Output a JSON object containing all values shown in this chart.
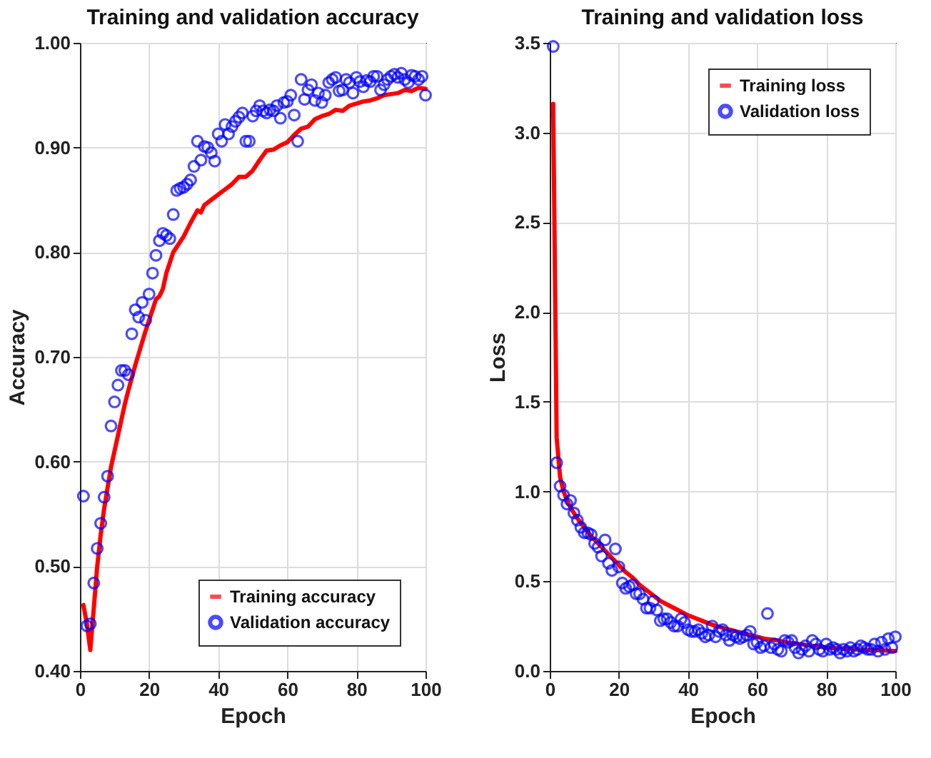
{
  "chart_data": [
    {
      "type": "line",
      "title": "Training and validation accuracy",
      "xlabel": "Epoch",
      "ylabel": "Accuracy",
      "xlim": [
        0,
        100
      ],
      "xticks": [
        0,
        20,
        40,
        60,
        80,
        100
      ],
      "ylim": [
        0.4,
        1
      ],
      "yticks": [
        {
          "value": 0.4,
          "label": "0.40"
        },
        {
          "value": 0.5,
          "label": "0.50"
        },
        {
          "value": 0.6,
          "label": "0.60"
        },
        {
          "value": 0.7,
          "label": "0.70"
        },
        {
          "value": 0.8,
          "label": "0.80"
        },
        {
          "value": 0.9,
          "label": "0.90"
        },
        {
          "value": 1,
          "label": "1.00"
        }
      ],
      "grid": true,
      "legend": "bottom right",
      "series": [
        {
          "name": "Training accuracy",
          "color": "#ff0000",
          "line_style": "solid",
          "x": [
            1,
            2,
            3,
            4,
            5,
            6,
            7,
            8,
            9,
            10,
            11,
            12,
            13,
            14,
            15,
            16,
            17,
            18,
            19,
            20,
            21,
            22,
            23,
            24,
            25,
            26,
            27,
            28,
            30,
            32,
            34,
            35,
            36,
            38,
            40,
            42,
            44,
            46,
            48,
            50,
            52,
            54,
            56,
            58,
            60,
            62,
            64,
            66,
            68,
            70,
            72,
            74,
            76,
            78,
            80,
            82,
            84,
            86,
            88,
            90,
            92,
            94,
            96,
            98,
            100
          ],
          "values": [
            0.463,
            0.445,
            0.42,
            0.46,
            0.5,
            0.53,
            0.555,
            0.575,
            0.595,
            0.61,
            0.625,
            0.64,
            0.655,
            0.668,
            0.68,
            0.692,
            0.703,
            0.714,
            0.725,
            0.735,
            0.745,
            0.755,
            0.758,
            0.765,
            0.78,
            0.79,
            0.8,
            0.805,
            0.815,
            0.828,
            0.84,
            0.838,
            0.845,
            0.85,
            0.855,
            0.86,
            0.865,
            0.872,
            0.872,
            0.878,
            0.888,
            0.897,
            0.898,
            0.902,
            0.905,
            0.912,
            0.918,
            0.92,
            0.927,
            0.93,
            0.932,
            0.936,
            0.935,
            0.94,
            0.942,
            0.944,
            0.945,
            0.947,
            0.95,
            0.951,
            0.952,
            0.955,
            0.954,
            0.957,
            0.956
          ]
        },
        {
          "name": "Validation accuracy",
          "type": "scatter",
          "color": "#0000ff",
          "marker": "circle",
          "x": [
            1,
            2,
            3,
            4,
            5,
            6,
            7,
            8,
            9,
            10,
            11,
            12,
            13,
            14,
            15,
            16,
            17,
            18,
            19,
            20,
            21,
            22,
            23,
            24,
            25,
            26,
            27,
            28,
            29,
            30,
            31,
            32,
            33,
            34,
            35,
            36,
            37,
            38,
            39,
            40,
            41,
            42,
            43,
            44,
            45,
            46,
            47,
            48,
            49,
            50,
            51,
            52,
            53,
            54,
            55,
            56,
            57,
            58,
            59,
            60,
            61,
            62,
            63,
            64,
            65,
            66,
            67,
            68,
            69,
            70,
            71,
            72,
            73,
            74,
            75,
            76,
            77,
            78,
            79,
            80,
            81,
            82,
            83,
            84,
            85,
            86,
            87,
            88,
            89,
            90,
            91,
            92,
            93,
            94,
            95,
            96,
            97,
            98,
            99,
            100
          ],
          "values": [
            0.567,
            0.443,
            0.445,
            0.484,
            0.517,
            0.541,
            0.566,
            0.586,
            0.634,
            0.657,
            0.673,
            0.687,
            0.687,
            0.683,
            0.722,
            0.745,
            0.738,
            0.752,
            0.735,
            0.76,
            0.78,
            0.797,
            0.811,
            0.818,
            0.816,
            0.813,
            0.836,
            0.859,
            0.861,
            0.862,
            0.865,
            0.869,
            0.882,
            0.906,
            0.888,
            0.901,
            0.9,
            0.895,
            0.887,
            0.913,
            0.906,
            0.922,
            0.913,
            0.92,
            0.925,
            0.929,
            0.933,
            0.906,
            0.906,
            0.93,
            0.935,
            0.94,
            0.935,
            0.933,
            0.936,
            0.935,
            0.94,
            0.928,
            0.943,
            0.944,
            0.95,
            0.931,
            0.906,
            0.965,
            0.946,
            0.955,
            0.96,
            0.945,
            0.952,
            0.943,
            0.95,
            0.962,
            0.965,
            0.967,
            0.954,
            0.955,
            0.965,
            0.962,
            0.952,
            0.967,
            0.963,
            0.958,
            0.964,
            0.963,
            0.968,
            0.968,
            0.955,
            0.96,
            0.965,
            0.968,
            0.97,
            0.967,
            0.971,
            0.965,
            0.962,
            0.969,
            0.968,
            0.965,
            0.968,
            0.95
          ]
        }
      ]
    },
    {
      "type": "line",
      "title": "Training and validation loss",
      "xlabel": "Epoch",
      "ylabel": "Loss",
      "xlim": [
        0,
        100
      ],
      "xticks": [
        0,
        20,
        40,
        60,
        80,
        100
      ],
      "ylim": [
        0,
        3.5
      ],
      "yticks": [
        {
          "value": 0,
          "label": "0.0"
        },
        0.5,
        {
          "value": 1,
          "label": "1.0"
        },
        1.5,
        {
          "value": 2,
          "label": "2.0"
        },
        2.5,
        {
          "value": 3,
          "label": "3.0"
        },
        3.5
      ],
      "grid": true,
      "legend": "top right",
      "series": [
        {
          "name": "Training loss",
          "color": "#ff0000",
          "line_style": "solid",
          "x": [
            1,
            2,
            3,
            4,
            5,
            6,
            8,
            10,
            12,
            14,
            16,
            18,
            20,
            22,
            24,
            26,
            28,
            30,
            32,
            34,
            36,
            38,
            40,
            42,
            44,
            46,
            48,
            50,
            52,
            54,
            56,
            58,
            60,
            62,
            64,
            66,
            68,
            70,
            72,
            74,
            76,
            78,
            80,
            84,
            88,
            92,
            96,
            100
          ],
          "values": [
            3.16,
            1.3,
            1.08,
            1.0,
            0.95,
            0.91,
            0.85,
            0.8,
            0.75,
            0.71,
            0.67,
            0.63,
            0.59,
            0.55,
            0.52,
            0.48,
            0.45,
            0.42,
            0.39,
            0.37,
            0.35,
            0.33,
            0.31,
            0.295,
            0.28,
            0.265,
            0.25,
            0.24,
            0.23,
            0.22,
            0.21,
            0.2,
            0.19,
            0.18,
            0.175,
            0.17,
            0.16,
            0.155,
            0.15,
            0.145,
            0.14,
            0.135,
            0.13,
            0.125,
            0.12,
            0.115,
            0.115,
            0.11
          ]
        },
        {
          "name": "Validation loss",
          "type": "scatter",
          "color": "#0000ff",
          "marker": "circle",
          "x": [
            1,
            2,
            3,
            4,
            5,
            6,
            7,
            8,
            9,
            10,
            11,
            12,
            13,
            14,
            15,
            16,
            17,
            18,
            19,
            20,
            21,
            22,
            23,
            24,
            25,
            26,
            27,
            28,
            29,
            30,
            31,
            32,
            33,
            34,
            35,
            36,
            37,
            38,
            39,
            40,
            41,
            42,
            43,
            44,
            45,
            46,
            47,
            48,
            49,
            50,
            51,
            52,
            53,
            54,
            55,
            56,
            57,
            58,
            59,
            60,
            61,
            62,
            63,
            64,
            65,
            66,
            67,
            68,
            69,
            70,
            71,
            72,
            73,
            74,
            75,
            76,
            77,
            78,
            79,
            80,
            81,
            82,
            83,
            84,
            85,
            86,
            87,
            88,
            89,
            90,
            91,
            92,
            93,
            94,
            95,
            96,
            97,
            98,
            99,
            100
          ],
          "values": [
            3.48,
            1.16,
            1.03,
            0.98,
            0.93,
            0.95,
            0.88,
            0.84,
            0.8,
            0.77,
            0.77,
            0.76,
            0.71,
            0.69,
            0.64,
            0.73,
            0.6,
            0.56,
            0.68,
            0.58,
            0.49,
            0.46,
            0.47,
            0.48,
            0.43,
            0.43,
            0.4,
            0.35,
            0.35,
            0.39,
            0.34,
            0.28,
            0.29,
            0.29,
            0.27,
            0.25,
            0.25,
            0.29,
            0.27,
            0.23,
            0.22,
            0.22,
            0.23,
            0.21,
            0.19,
            0.2,
            0.25,
            0.19,
            0.22,
            0.23,
            0.2,
            0.17,
            0.2,
            0.19,
            0.18,
            0.19,
            0.2,
            0.22,
            0.15,
            0.16,
            0.13,
            0.14,
            0.32,
            0.13,
            0.15,
            0.12,
            0.11,
            0.17,
            0.16,
            0.17,
            0.13,
            0.1,
            0.12,
            0.14,
            0.11,
            0.17,
            0.15,
            0.12,
            0.11,
            0.15,
            0.12,
            0.13,
            0.12,
            0.1,
            0.12,
            0.11,
            0.13,
            0.11,
            0.12,
            0.14,
            0.13,
            0.12,
            0.12,
            0.15,
            0.11,
            0.16,
            0.12,
            0.18,
            0.13,
            0.19
          ]
        }
      ]
    }
  ]
}
